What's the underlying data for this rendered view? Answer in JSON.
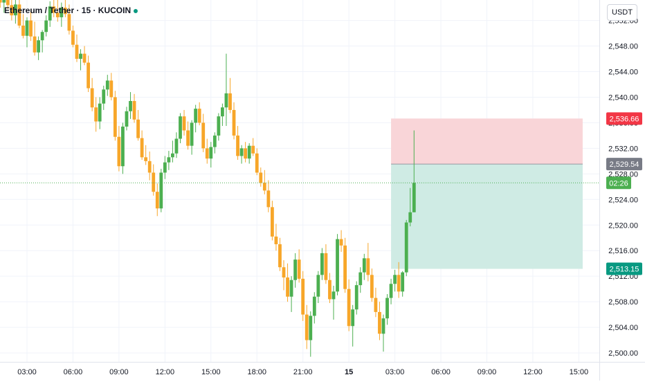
{
  "header": {
    "symbol_title": "Ethereum / Tether · 15 · KUCOIN",
    "currency_button": "USDT"
  },
  "colors": {
    "up": "#4caf50",
    "down": "#f7a629",
    "stop_zone": "#f9d5d8",
    "target_zone": "#cfebe4",
    "stop_label": "#f23645",
    "entry_label": "#787b86",
    "target_label": "#089981",
    "countdown_label": "#4caf50",
    "current_price_line": "#4caf50"
  },
  "price_labels": {
    "stop": "2,536.66",
    "entry": "2,529.54",
    "target": "2,513.15",
    "countdown": "02:26"
  },
  "chart_data": {
    "type": "candlestick",
    "y_axis": {
      "range": [
        2498.6,
        2555.2
      ],
      "ticks": [
        2500,
        2504,
        2508,
        2512,
        2516,
        2520,
        2524,
        2528,
        2532,
        2536,
        2540,
        2544,
        2548,
        2552
      ],
      "tick_labels": [
        "2,500.00",
        "2,504.00",
        "2,508.00",
        "2,512.00",
        "2,516.00",
        "2,520.00",
        "2,524.00",
        "2,528.00",
        "2,532.00",
        "2,536.00",
        "2,540.00",
        "2,544.00",
        "2,548.00",
        "2,552.00"
      ],
      "grid": true
    },
    "x_axis": {
      "tick_labels": [
        "03:00",
        "06:00",
        "09:00",
        "12:00",
        "15:00",
        "18:00",
        "21:00",
        "15",
        "03:00",
        "06:00",
        "09:00",
        "12:00",
        "15:00"
      ],
      "tick_hours": [
        3,
        6,
        9,
        12,
        15,
        18,
        21,
        24,
        27,
        30,
        33,
        36,
        39
      ],
      "bold_labels": [
        "15"
      ],
      "grid": true
    },
    "candle_interval_minutes": 15,
    "first_candle_hour": 0.0,
    "candles": [
      [
        2554.0,
        2556.0,
        2551.0,
        2552.5
      ],
      [
        2552.5,
        2555.0,
        2551.5,
        2553.5
      ],
      [
        2553.5,
        2555.5,
        2552.0,
        2552.8
      ],
      [
        2552.8,
        2556.0,
        2551.8,
        2554.6
      ],
      [
        2554.6,
        2556.5,
        2553.5,
        2555.5
      ],
      [
        2555.5,
        2556.8,
        2554.0,
        2554.8
      ],
      [
        2554.8,
        2556.0,
        2553.2,
        2555.2
      ],
      [
        2555.2,
        2556.0,
        2553.8,
        2554.4
      ],
      [
        2554.4,
        2555.5,
        2552.0,
        2552.8
      ],
      [
        2552.8,
        2555.2,
        2551.5,
        2554.5
      ],
      [
        2554.5,
        2555.5,
        2550.8,
        2551.2
      ],
      [
        2551.2,
        2553.0,
        2549.2,
        2549.6
      ],
      [
        2549.6,
        2552.5,
        2547.8,
        2552.0
      ],
      [
        2552.0,
        2553.8,
        2548.8,
        2549.5
      ],
      [
        2549.5,
        2551.8,
        2546.5,
        2547.0
      ],
      [
        2547.0,
        2549.5,
        2545.8,
        2548.9
      ],
      [
        2548.9,
        2550.5,
        2547.0,
        2550.2
      ],
      [
        2550.2,
        2552.8,
        2549.5,
        2552.0
      ],
      [
        2552.0,
        2555.0,
        2551.0,
        2554.2
      ],
      [
        2554.2,
        2555.6,
        2552.5,
        2553.2
      ],
      [
        2553.2,
        2556.0,
        2551.8,
        2552.5
      ],
      [
        2552.5,
        2554.8,
        2551.0,
        2554.0
      ],
      [
        2554.0,
        2556.0,
        2552.5,
        2553.0
      ],
      [
        2553.0,
        2554.5,
        2549.8,
        2550.4
      ],
      [
        2550.4,
        2551.2,
        2547.8,
        2548.2
      ],
      [
        2548.2,
        2549.8,
        2545.5,
        2546.0
      ],
      [
        2546.0,
        2547.5,
        2544.2,
        2546.8
      ],
      [
        2546.8,
        2548.0,
        2545.0,
        2545.4
      ],
      [
        2545.4,
        2546.5,
        2540.8,
        2541.4
      ],
      [
        2541.4,
        2543.0,
        2537.8,
        2538.4
      ],
      [
        2538.4,
        2540.0,
        2534.6,
        2536.2
      ],
      [
        2536.2,
        2540.0,
        2535.0,
        2539.0
      ],
      [
        2539.0,
        2541.8,
        2538.0,
        2541.2
      ],
      [
        2541.2,
        2543.5,
        2540.2,
        2542.6
      ],
      [
        2542.6,
        2543.8,
        2539.5,
        2540.0
      ],
      [
        2540.0,
        2541.0,
        2533.2,
        2533.8
      ],
      [
        2533.8,
        2535.5,
        2528.4,
        2529.2
      ],
      [
        2529.2,
        2536.0,
        2528.0,
        2535.4
      ],
      [
        2535.4,
        2538.5,
        2534.8,
        2537.8
      ],
      [
        2537.8,
        2540.8,
        2536.6,
        2539.4
      ],
      [
        2539.4,
        2540.5,
        2536.0,
        2536.5
      ],
      [
        2536.5,
        2538.0,
        2533.2,
        2533.6
      ],
      [
        2533.6,
        2534.8,
        2530.2,
        2530.6
      ],
      [
        2530.6,
        2532.5,
        2529.4,
        2530.0
      ],
      [
        2530.0,
        2531.5,
        2527.0,
        2528.2
      ],
      [
        2528.2,
        2529.5,
        2524.6,
        2525.2
      ],
      [
        2525.2,
        2526.5,
        2521.4,
        2522.6
      ],
      [
        2522.6,
        2528.8,
        2522.0,
        2528.2
      ],
      [
        2528.2,
        2530.8,
        2527.2,
        2529.8
      ],
      [
        2529.8,
        2531.6,
        2528.6,
        2530.6
      ],
      [
        2530.6,
        2533.2,
        2529.8,
        2531.2
      ],
      [
        2531.2,
        2534.5,
        2530.5,
        2533.5
      ],
      [
        2533.5,
        2537.5,
        2532.8,
        2537.0
      ],
      [
        2537.0,
        2538.0,
        2534.0,
        2534.8
      ],
      [
        2534.8,
        2536.2,
        2531.8,
        2532.4
      ],
      [
        2532.4,
        2536.4,
        2531.0,
        2536.0
      ],
      [
        2536.0,
        2538.8,
        2534.5,
        2538.2
      ],
      [
        2538.2,
        2539.2,
        2535.6,
        2536.0
      ],
      [
        2536.0,
        2537.4,
        2531.4,
        2532.0
      ],
      [
        2532.0,
        2533.5,
        2529.6,
        2530.4
      ],
      [
        2530.4,
        2533.0,
        2529.0,
        2532.2
      ],
      [
        2532.2,
        2534.5,
        2531.2,
        2534.0
      ],
      [
        2534.0,
        2537.5,
        2533.2,
        2537.0
      ],
      [
        2537.0,
        2539.0,
        2535.5,
        2538.4
      ],
      [
        2538.4,
        2546.8,
        2535.5,
        2540.6
      ],
      [
        2540.6,
        2543.0,
        2537.5,
        2538.0
      ],
      [
        2538.0,
        2539.2,
        2533.4,
        2534.0
      ],
      [
        2534.0,
        2535.5,
        2530.2,
        2530.8
      ],
      [
        2530.8,
        2532.5,
        2529.6,
        2532.0
      ],
      [
        2532.0,
        2533.0,
        2529.8,
        2530.4
      ],
      [
        2530.4,
        2532.8,
        2529.6,
        2532.4
      ],
      [
        2532.4,
        2533.6,
        2530.8,
        2531.2
      ],
      [
        2531.2,
        2532.0,
        2527.8,
        2528.2
      ],
      [
        2528.2,
        2529.0,
        2526.0,
        2526.6
      ],
      [
        2526.6,
        2528.6,
        2524.8,
        2525.4
      ],
      [
        2525.4,
        2527.0,
        2522.0,
        2522.8
      ],
      [
        2522.8,
        2523.8,
        2517.6,
        2518.2
      ],
      [
        2518.2,
        2520.2,
        2516.0,
        2517.0
      ],
      [
        2517.0,
        2518.0,
        2512.8,
        2513.4
      ],
      [
        2513.4,
        2514.5,
        2509.8,
        2511.8
      ],
      [
        2511.8,
        2514.0,
        2508.0,
        2508.8
      ],
      [
        2508.8,
        2512.0,
        2506.4,
        2511.4
      ],
      [
        2511.4,
        2515.6,
        2510.2,
        2514.6
      ],
      [
        2514.6,
        2516.2,
        2511.0,
        2511.6
      ],
      [
        2511.6,
        2512.8,
        2505.0,
        2506.0
      ],
      [
        2506.0,
        2507.5,
        2500.6,
        2502.0
      ],
      [
        2502.0,
        2506.5,
        2499.4,
        2505.8
      ],
      [
        2505.8,
        2509.5,
        2504.6,
        2508.8
      ],
      [
        2508.8,
        2512.8,
        2507.8,
        2512.2
      ],
      [
        2512.2,
        2516.4,
        2511.4,
        2515.6
      ],
      [
        2515.6,
        2517.0,
        2510.8,
        2511.4
      ],
      [
        2511.4,
        2512.5,
        2507.8,
        2508.4
      ],
      [
        2508.4,
        2510.5,
        2505.2,
        2509.6
      ],
      [
        2509.6,
        2518.6,
        2509.0,
        2517.8
      ],
      [
        2517.8,
        2519.2,
        2515.8,
        2516.8
      ],
      [
        2516.8,
        2518.0,
        2509.4,
        2510.0
      ],
      [
        2510.0,
        2511.5,
        2503.4,
        2504.2
      ],
      [
        2504.2,
        2507.5,
        2501.0,
        2506.8
      ],
      [
        2506.8,
        2511.2,
        2506.0,
        2510.6
      ],
      [
        2510.6,
        2513.4,
        2509.4,
        2512.6
      ],
      [
        2512.6,
        2515.5,
        2511.4,
        2514.8
      ],
      [
        2514.8,
        2517.2,
        2511.2,
        2512.2
      ],
      [
        2512.2,
        2513.2,
        2508.0,
        2508.6
      ],
      [
        2508.6,
        2510.2,
        2505.6,
        2506.4
      ],
      [
        2506.4,
        2508.0,
        2502.0,
        2503.0
      ],
      [
        2503.0,
        2506.0,
        2500.2,
        2505.4
      ],
      [
        2505.4,
        2509.2,
        2504.4,
        2508.6
      ],
      [
        2508.6,
        2511.6,
        2507.6,
        2510.8
      ],
      [
        2510.8,
        2513.0,
        2509.6,
        2512.2
      ],
      [
        2512.2,
        2514.2,
        2508.6,
        2509.6
      ],
      [
        2509.6,
        2512.8,
        2508.8,
        2512.6
      ],
      [
        2512.6,
        2520.8,
        2512.0,
        2520.4
      ],
      [
        2520.4,
        2525.8,
        2519.8,
        2522.0
      ],
      [
        2522.0,
        2534.8,
        2522.0,
        2526.6
      ]
    ]
  }
}
